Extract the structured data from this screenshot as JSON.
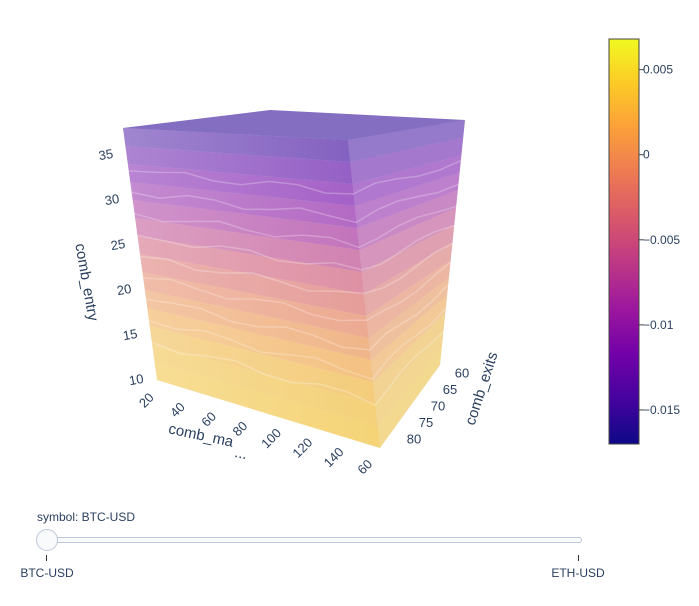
{
  "chart_data": {
    "type": "volume",
    "scene": {
      "xaxis": {
        "title": "comb_ma",
        "ticks": [
          "20",
          "40",
          "60",
          "80",
          "100",
          "120",
          "140",
          "60"
        ],
        "visible_text_after_title": "..."
      },
      "yaxis": {
        "title": "comb_exits",
        "ticks": [
          "60",
          "65",
          "70",
          "75",
          "80"
        ]
      },
      "zaxis": {
        "title": "comb_entry",
        "ticks": [
          "10",
          "15",
          "20",
          "25",
          "30",
          "35"
        ]
      }
    },
    "colorscale": [
      "#0d0887",
      "#46039f",
      "#7201a8",
      "#9c179e",
      "#bd3786",
      "#d8576b",
      "#ed7953",
      "#fb9f3a",
      "#fdca26",
      "#f0f921"
    ],
    "colorbar": {
      "range": [
        -0.017,
        0.0068
      ],
      "ticks": [
        {
          "value": 0.005,
          "label": "0.005"
        },
        {
          "value": 0,
          "label": "0"
        },
        {
          "value": -0.005,
          "label": "−0.005"
        },
        {
          "value": -0.01,
          "label": "−0.01"
        },
        {
          "value": -0.015,
          "label": "−0.015"
        }
      ]
    },
    "value_trend_by_entry": [
      {
        "comb_entry": 10,
        "value": 0.004
      },
      {
        "comb_entry": 15,
        "value": 0.003
      },
      {
        "comb_entry": 20,
        "value": 0.0
      },
      {
        "comb_entry": 25,
        "value": -0.004
      },
      {
        "comb_entry": 30,
        "value": -0.009
      },
      {
        "comb_entry": 35,
        "value": -0.013
      }
    ]
  },
  "slider": {
    "current_label": "symbol: BTC-USD",
    "steps": [
      {
        "label": "BTC-USD",
        "active": true
      },
      {
        "label": "ETH-USD",
        "active": false
      }
    ]
  }
}
